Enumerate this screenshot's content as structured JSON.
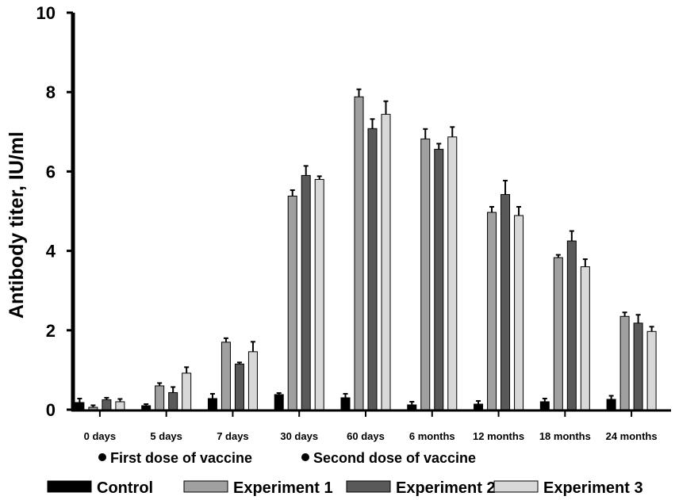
{
  "chart_data": {
    "type": "bar",
    "title": "",
    "xlabel": "",
    "ylabel": "Antibody titer, IU/ml",
    "ylim": [
      0,
      10
    ],
    "yticks": [
      "0",
      "2",
      "4",
      "6",
      "8",
      "10"
    ],
    "grid": false,
    "legend_position": "bottom",
    "categories": [
      "0 days",
      "5 days",
      "7 days",
      "30 days",
      "60 days",
      "6 months",
      "12 months",
      "18 months",
      "24 months"
    ],
    "series": [
      {
        "name": "Control",
        "color": "#000000",
        "values": [
          0.18,
          0.1,
          0.28,
          0.38,
          0.3,
          0.12,
          0.14,
          0.2,
          0.26
        ],
        "errors": [
          0.1,
          0.04,
          0.12,
          0.04,
          0.1,
          0.08,
          0.08,
          0.08,
          0.09
        ]
      },
      {
        "name": "Experiment 1",
        "color": "#a0a0a0",
        "values": [
          0.06,
          0.6,
          1.7,
          5.38,
          7.88,
          6.82,
          4.97,
          3.83,
          2.35
        ],
        "errors": [
          0.05,
          0.07,
          0.1,
          0.15,
          0.19,
          0.25,
          0.14,
          0.07,
          0.1
        ]
      },
      {
        "name": "Experiment 2",
        "color": "#595959",
        "values": [
          0.25,
          0.43,
          1.15,
          5.9,
          7.08,
          6.56,
          5.42,
          4.25,
          2.18
        ],
        "errors": [
          0.05,
          0.14,
          0.04,
          0.24,
          0.24,
          0.14,
          0.35,
          0.25,
          0.21
        ]
      },
      {
        "name": "Experiment 3",
        "color": "#d8d8d8",
        "values": [
          0.2,
          0.92,
          1.46,
          5.8,
          7.44,
          6.87,
          4.89,
          3.6,
          1.97
        ],
        "errors": [
          0.07,
          0.15,
          0.25,
          0.08,
          0.33,
          0.25,
          0.22,
          0.19,
          0.12
        ]
      }
    ],
    "annotations": {
      "first_dose": "First dose of vaccine",
      "second_dose": "Second dose of vaccine"
    }
  }
}
